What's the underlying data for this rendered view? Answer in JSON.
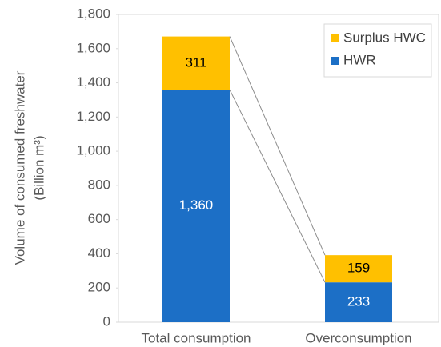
{
  "chart_data": {
    "type": "stacked_bar",
    "y_label": [
      "Volume of consumed freshwater",
      "(Billion m³)"
    ],
    "categories": [
      "Total consumption",
      "Overconsumption"
    ],
    "series": [
      {
        "name": "HWR",
        "color": "#1c6fc6",
        "values": [
          1360,
          233
        ],
        "value_labels": [
          "1,360",
          "233"
        ]
      },
      {
        "name": "Surplus HWC",
        "color": "#ffc000",
        "values": [
          311,
          159
        ]
      }
    ],
    "ylim": [
      0,
      1800
    ],
    "yticks": [
      0,
      200,
      400,
      600,
      800,
      {
        "value": 1000,
        "label": "1,000"
      },
      {
        "value": 1200,
        "label": "1,200"
      },
      {
        "value": 1400,
        "label": "1,400"
      },
      {
        "value": 1600,
        "label": "1,600"
      },
      {
        "value": 1800,
        "label": "1,800"
      }
    ],
    "legend": "top-right"
  }
}
